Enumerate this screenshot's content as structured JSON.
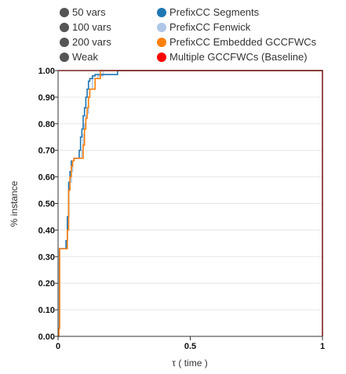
{
  "legend": {
    "left": [
      {
        "label": "50 vars",
        "color": "#555555"
      },
      {
        "label": "100 vars",
        "color": "#555555"
      },
      {
        "label": "200 vars",
        "color": "#555555"
      },
      {
        "label": "Weak",
        "color": "#555555"
      }
    ],
    "right": [
      {
        "label": "PrefixCC Segments",
        "color": "#1f77b4"
      },
      {
        "label": "PrefixCC Fenwick",
        "color": "#aec7e8"
      },
      {
        "label": "PrefixCC Embedded GCCFWCs",
        "color": "#ff7f0e"
      },
      {
        "label": "Multiple GCCFWCs (Baseline)",
        "color": "#ff0000"
      }
    ]
  },
  "chart_data": {
    "type": "line",
    "xlabel": "τ ( time )",
    "ylabel": "% instance",
    "xlim": [
      0,
      1
    ],
    "ylim": [
      0,
      1
    ],
    "x_ticks": [
      "0",
      "0.5",
      "1"
    ],
    "x_tick_values": [
      0,
      0.5,
      1
    ],
    "y_ticks": [
      "0.00",
      "0.10",
      "0.20",
      "0.30",
      "0.40",
      "0.50",
      "0.60",
      "0.70",
      "0.80",
      "0.90",
      "1.00"
    ],
    "y_tick_values": [
      0,
      0.1,
      0.2,
      0.3,
      0.4,
      0.5,
      0.6,
      0.7,
      0.8,
      0.9,
      1.0
    ],
    "series": [
      {
        "name": "PrefixCC Fenwick",
        "color": "#aec7e8",
        "x": [
          0,
          0.003,
          0.006,
          0.03,
          0.033,
          0.036,
          0.04,
          0.045,
          0.05,
          0.055,
          0.06,
          0.08,
          0.09,
          0.095,
          0.1,
          0.105,
          0.11,
          0.115,
          0.12,
          0.13,
          0.15,
          0.17,
          1.0
        ],
        "y": [
          0,
          0.03,
          0.33,
          0.33,
          0.36,
          0.45,
          0.55,
          0.58,
          0.62,
          0.66,
          0.67,
          0.67,
          0.7,
          0.76,
          0.8,
          0.83,
          0.84,
          0.9,
          0.93,
          0.97,
          0.98,
          1.0,
          1.0
        ]
      },
      {
        "name": "PrefixCC Segments",
        "color": "#1f77b4",
        "x": [
          0,
          0.002,
          0.005,
          0.027,
          0.03,
          0.035,
          0.04,
          0.045,
          0.05,
          0.055,
          0.06,
          0.08,
          0.085,
          0.09,
          0.095,
          0.1,
          0.105,
          0.11,
          0.115,
          0.12,
          0.13,
          0.14,
          0.22,
          0.225,
          1.0
        ],
        "y": [
          0,
          0.03,
          0.33,
          0.33,
          0.36,
          0.45,
          0.58,
          0.62,
          0.66,
          0.66,
          0.67,
          0.7,
          0.75,
          0.78,
          0.83,
          0.86,
          0.9,
          0.93,
          0.96,
          0.97,
          0.98,
          0.985,
          0.985,
          1.0,
          1.0
        ]
      },
      {
        "name": "PrefixCC Embedded GCCFWCs",
        "color": "#ff7f0e",
        "x": [
          0,
          0.003,
          0.006,
          0.03,
          0.035,
          0.04,
          0.045,
          0.05,
          0.055,
          0.06,
          0.09,
          0.095,
          0.1,
          0.105,
          0.11,
          0.115,
          0.12,
          0.14,
          0.16,
          1.0
        ],
        "y": [
          0,
          0.03,
          0.33,
          0.33,
          0.4,
          0.55,
          0.6,
          0.64,
          0.66,
          0.67,
          0.67,
          0.72,
          0.78,
          0.82,
          0.86,
          0.9,
          0.93,
          0.97,
          1.0,
          1.0
        ]
      },
      {
        "name": "Multiple GCCFWCs (Baseline)",
        "color": "#ff0000",
        "x": [
          1.0,
          1.0,
          0.0
        ],
        "y": [
          0.0,
          1.0,
          1.0
        ]
      }
    ]
  }
}
